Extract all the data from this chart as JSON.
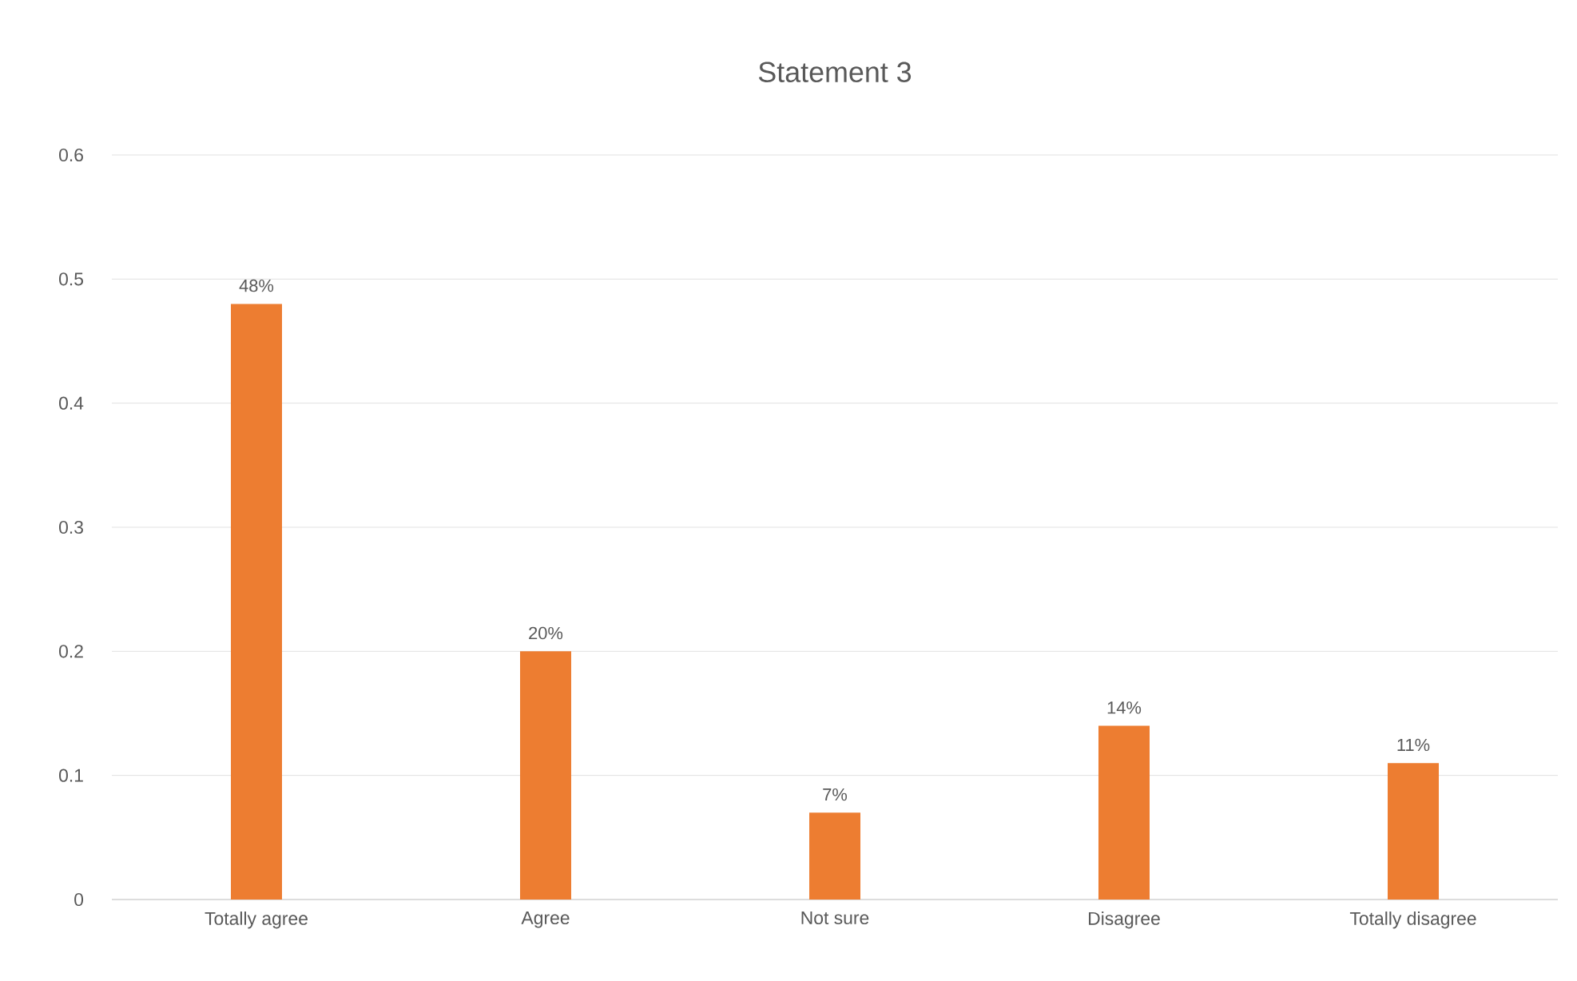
{
  "chart_data": {
    "type": "bar",
    "title": "Statement 3",
    "categories": [
      "Totally agree",
      "Agree",
      "Not sure",
      "Disagree",
      "Totally disagree"
    ],
    "values": [
      0.48,
      0.2,
      0.07,
      0.14,
      0.11
    ],
    "value_labels": [
      "48%",
      "20%",
      "7%",
      "14%",
      "11%"
    ],
    "color": "#ed7d31",
    "ylim": [
      0,
      0.6
    ],
    "yticks": [
      0,
      0.1,
      0.2,
      0.3,
      0.4,
      0.5,
      0.6
    ],
    "grid": "y"
  }
}
